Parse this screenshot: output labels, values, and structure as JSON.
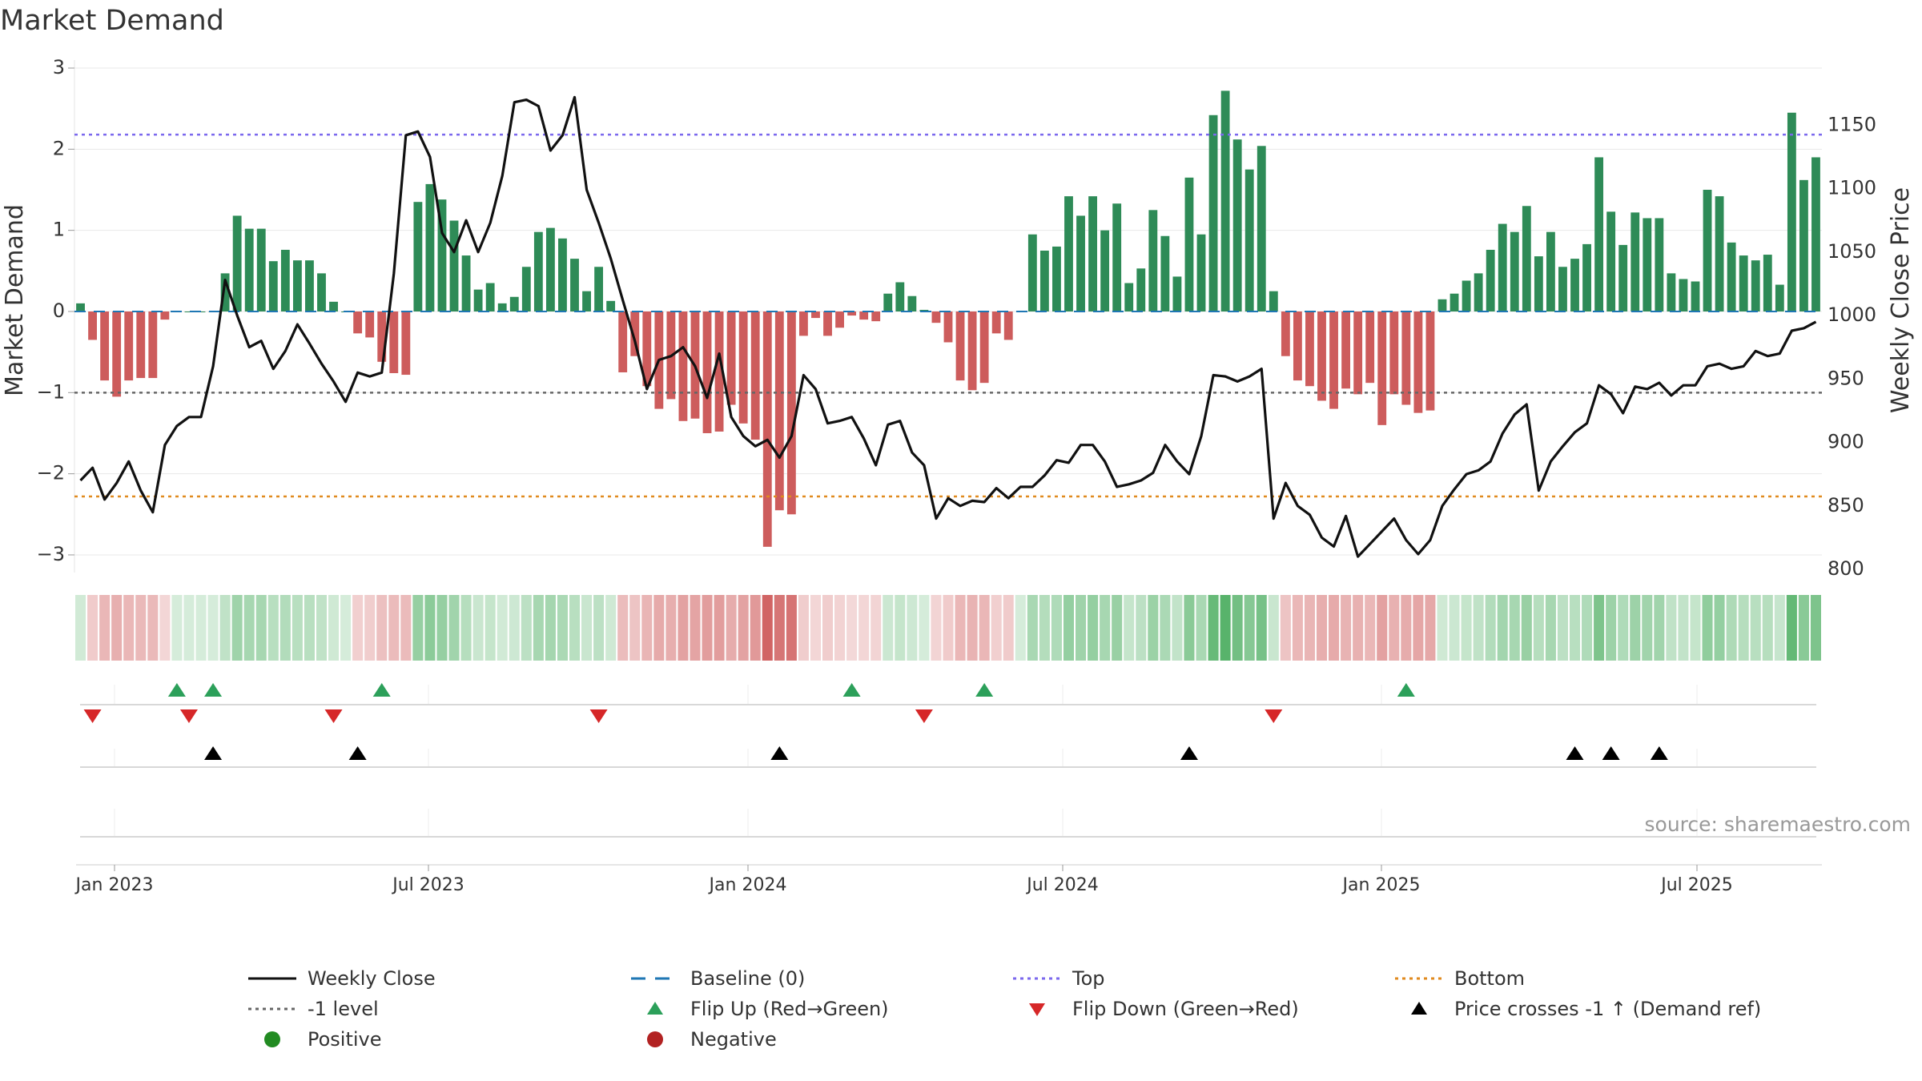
{
  "title": "Market Demand",
  "source": "source: sharemaestro.com",
  "colors": {
    "positive": "#2e8b57",
    "negative": "#cd5c5c",
    "price": "#111111",
    "baseline": "#1f77b4",
    "top": "#7b68ee",
    "minus1": "#666666",
    "bottom": "#e08a1e",
    "flip_up": "#2ca05a",
    "flip_down": "#d62728",
    "cross": "#000000"
  },
  "chart_data": {
    "type": "bar",
    "title": "Market Demand",
    "ylabel": "Market Demand",
    "y2label": "Weekly Close Price",
    "ylim": [
      -3.2,
      3.0
    ],
    "y2lim": [
      800,
      1190
    ],
    "yticks": [
      "3",
      "2",
      "1",
      "0",
      "−1",
      "−2",
      "−3"
    ],
    "y2ticks": [
      "1150",
      "1100",
      "1050",
      "1000",
      "950",
      "900",
      "850",
      "800"
    ],
    "xticks": [
      "Jan 2023",
      "Jul 2023",
      "Jan 2024",
      "Jul 2024",
      "Jan 2025",
      "Jul 2025"
    ],
    "reference_lines": {
      "top": 2.18,
      "minus1": -1.0,
      "bottom": -2.28,
      "baseline": 0
    },
    "demand": [
      0.1,
      -0.35,
      -0.85,
      -1.05,
      -0.85,
      -0.82,
      -0.82,
      -0.1,
      0.0,
      0.0,
      0.0,
      0.0,
      0.47,
      1.18,
      1.02,
      1.02,
      0.62,
      0.76,
      0.63,
      0.63,
      0.47,
      0.12,
      0.0,
      -0.27,
      -0.32,
      -0.62,
      -0.76,
      -0.78,
      1.35,
      1.57,
      1.38,
      1.12,
      0.69,
      0.27,
      0.35,
      0.1,
      0.18,
      0.55,
      0.98,
      1.03,
      0.9,
      0.65,
      0.25,
      0.55,
      0.13,
      -0.75,
      -0.55,
      -0.92,
      -1.2,
      -1.08,
      -1.35,
      -1.32,
      -1.5,
      -1.48,
      -1.15,
      -1.38,
      -1.58,
      -2.9,
      -2.45,
      -2.5,
      -0.3,
      -0.08,
      -0.3,
      -0.2,
      -0.05,
      -0.1,
      -0.12,
      0.22,
      0.36,
      0.19,
      0.02,
      -0.14,
      -0.38,
      -0.85,
      -0.97,
      -0.88,
      -0.27,
      -0.35,
      0.0,
      0.95,
      0.75,
      0.8,
      1.42,
      1.18,
      1.42,
      1.0,
      1.33,
      0.35,
      0.53,
      1.25,
      0.93,
      0.43,
      1.65,
      0.95,
      2.42,
      2.72,
      2.12,
      1.75,
      2.04,
      0.25,
      -0.55,
      -0.85,
      -0.92,
      -1.1,
      -1.2,
      -0.95,
      -1.02,
      -0.88,
      -1.4,
      -1.02,
      -1.15,
      -1.25,
      -1.22,
      0.15,
      0.22,
      0.38,
      0.47,
      0.76,
      1.08,
      0.98,
      1.3,
      0.68,
      0.98,
      0.55,
      0.65,
      0.83,
      1.9,
      1.23,
      0.82,
      1.22,
      1.15,
      1.15,
      0.47,
      0.4,
      0.37,
      1.5,
      1.42,
      0.85,
      0.69,
      0.63,
      0.7,
      0.33,
      2.45,
      1.62,
      1.9
    ],
    "price": [
      870,
      880,
      855,
      868,
      885,
      862,
      845,
      898,
      913,
      920,
      920,
      960,
      1028,
      1000,
      975,
      980,
      958,
      972,
      993,
      978,
      962,
      948,
      932,
      955,
      952,
      955,
      1033,
      1142,
      1145,
      1125,
      1065,
      1050,
      1075,
      1050,
      1073,
      1110,
      1168,
      1170,
      1165,
      1130,
      1142,
      1172,
      1099,
      1073,
      1045,
      1012,
      980,
      942,
      965,
      968,
      975,
      960,
      935,
      970,
      920,
      905,
      897,
      902,
      888,
      905,
      953,
      942,
      915,
      917,
      920,
      903,
      882,
      914,
      917,
      892,
      882,
      840,
      856,
      850,
      854,
      853,
      864,
      856,
      865,
      865,
      874,
      886,
      884,
      898,
      898,
      885,
      865,
      867,
      870,
      876,
      898,
      885,
      875,
      905,
      953,
      952,
      948,
      952,
      958,
      840,
      868,
      850,
      843,
      825,
      818,
      842,
      810,
      820,
      830,
      840,
      823,
      812,
      823,
      850,
      863,
      875,
      878,
      885,
      907,
      922,
      930,
      862,
      885,
      897,
      908,
      915,
      945,
      938,
      923,
      944,
      942,
      947,
      937,
      945,
      945,
      960,
      962,
      958,
      960,
      972,
      968,
      970,
      988,
      990,
      995
    ],
    "flip_up": [
      8,
      11,
      25,
      64,
      75,
      110
    ],
    "flip_down": [
      1,
      9,
      21,
      43,
      70,
      99
    ],
    "price_crosses": [
      11,
      23,
      58,
      92,
      124,
      127,
      131
    ],
    "legend": [
      {
        "label": "Weekly Close",
        "symbol": "line-solid"
      },
      {
        "label": "Baseline (0)",
        "symbol": "line-dash"
      },
      {
        "label": "Top",
        "symbol": "line-dot-top"
      },
      {
        "label": "Bottom",
        "symbol": "line-dot-bottom"
      },
      {
        "label": "-1 level",
        "symbol": "line-dot-minus1"
      },
      {
        "label": "Flip Up (Red→Green)",
        "symbol": "triangle-up-green"
      },
      {
        "label": "Flip Down (Green→Red)",
        "symbol": "triangle-down-red"
      },
      {
        "label": "Price crosses -1 ↑ (Demand ref)",
        "symbol": "triangle-up-black"
      },
      {
        "label": "Positive",
        "symbol": "circle-green"
      },
      {
        "label": "Negative",
        "symbol": "circle-red"
      }
    ]
  }
}
